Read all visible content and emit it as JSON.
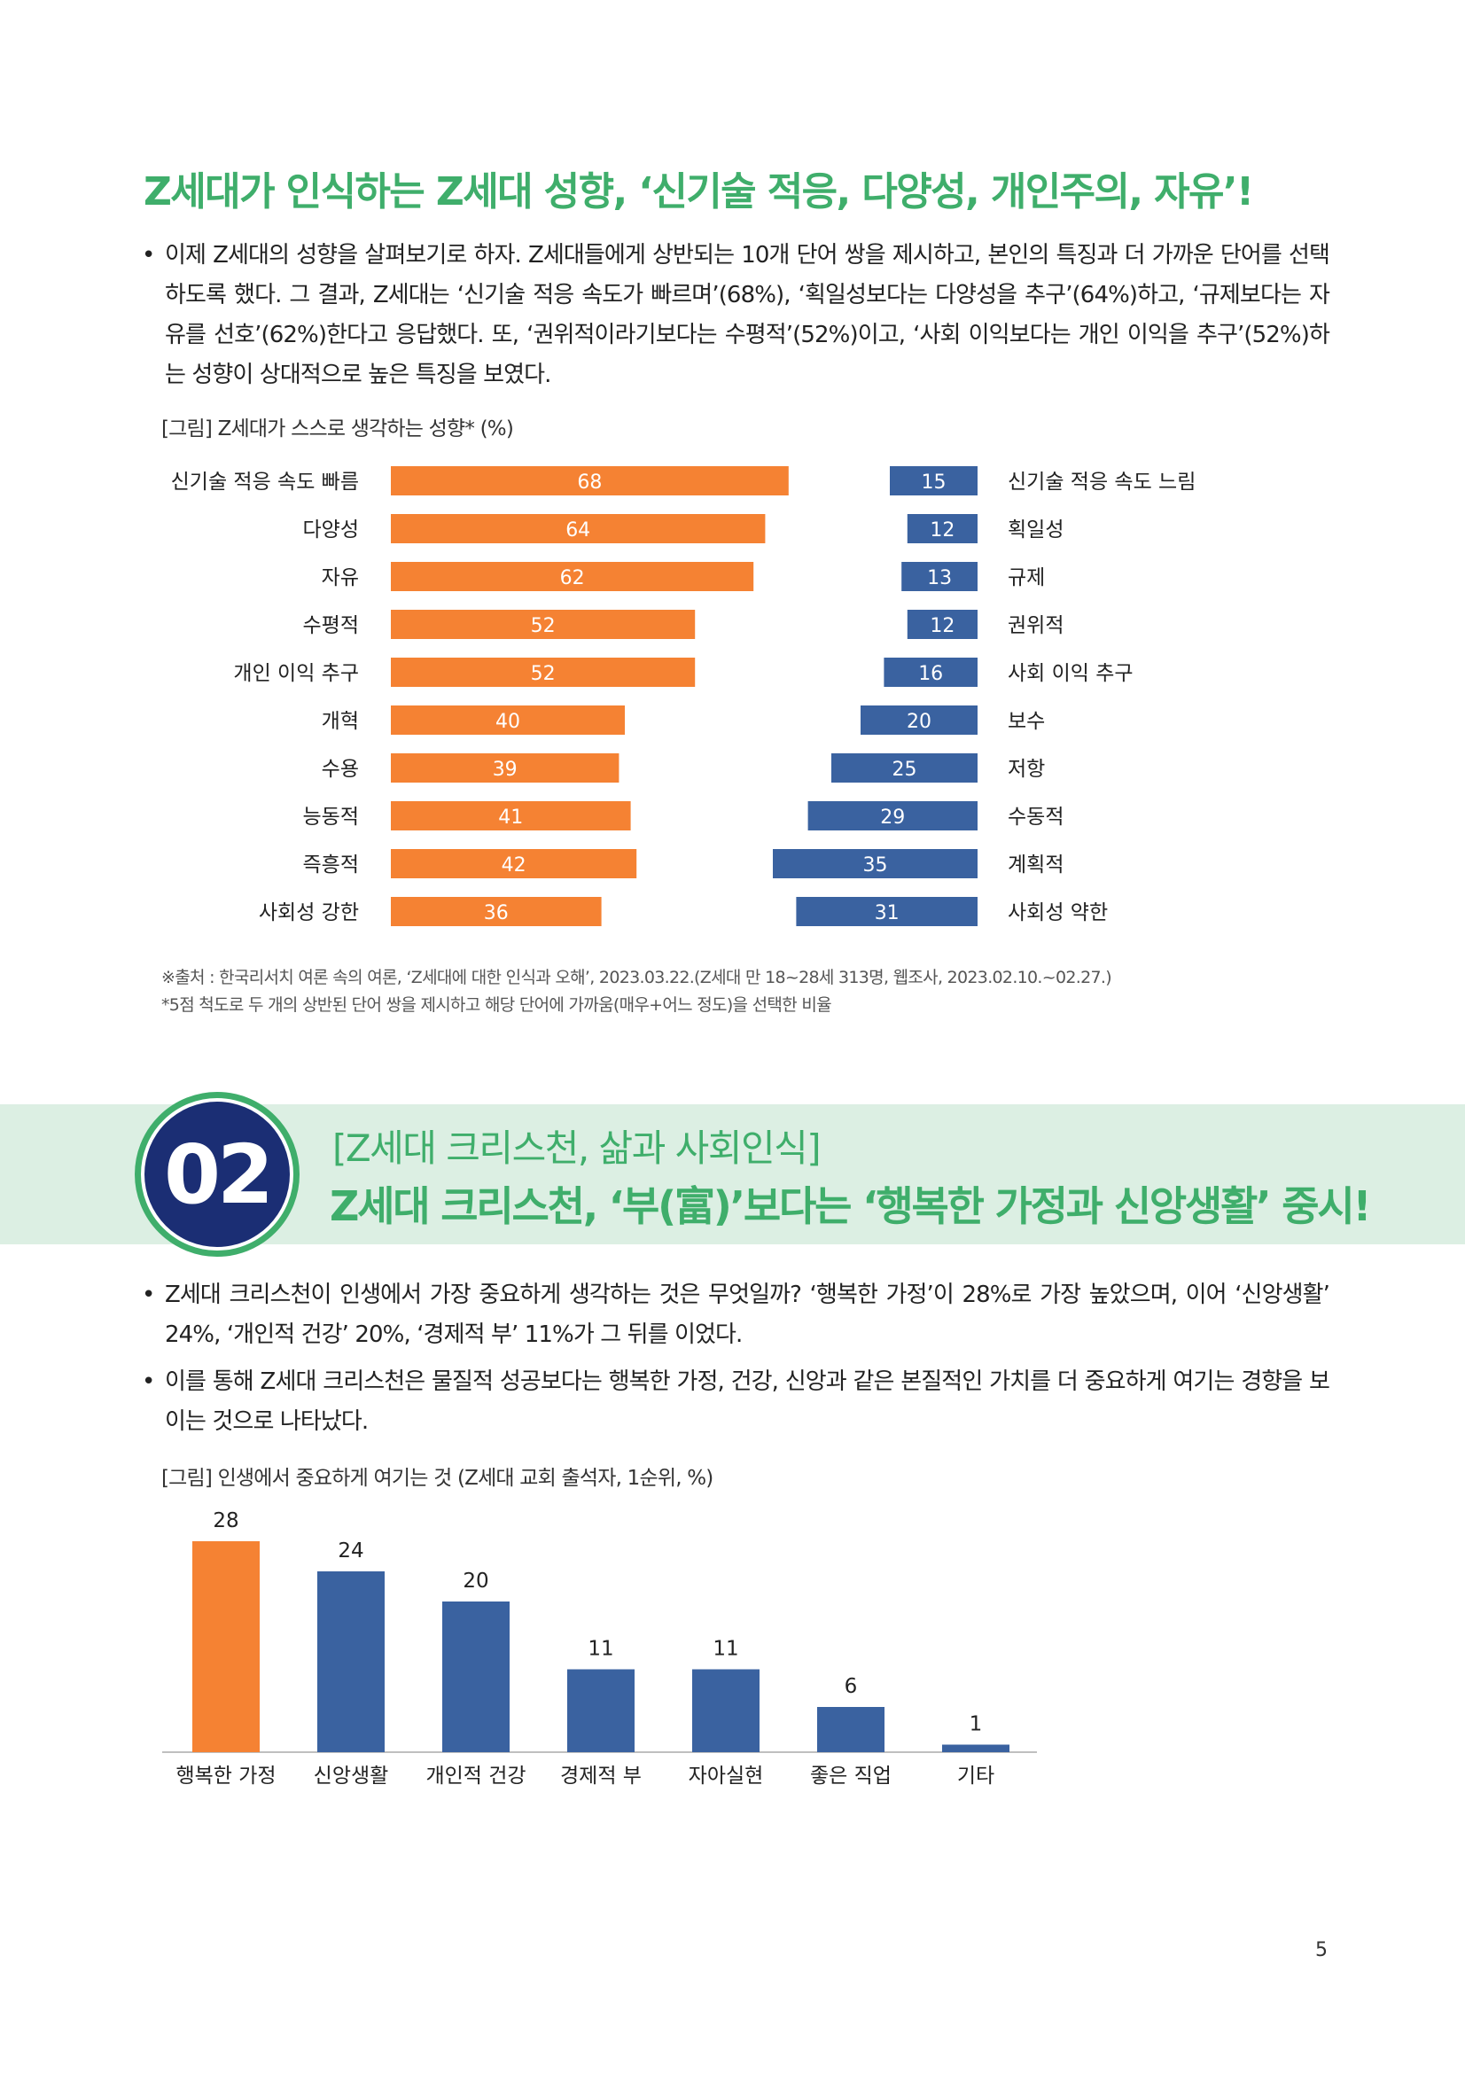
{
  "heading": "Z세대가 인식하는 Z세대 성향, ‘신기술 적응, 다양성, 개인주의, 자유’!",
  "bullets1": [
    "이제 Z세대의 성향을 살펴보기로 하자. Z세대들에게 상반되는 10개 단어 쌍을 제시하고, 본인의 특징과 더 가까운 단어를 선택하도록 했다. 그 결과, Z세대는 ‘신기술 적응 속도가 빠르며’(68%), ‘획일성보다는 다양성을 추구’(64%)하고, ‘규제보다는 자유를 선호’(62%)한다고 응답했다. 또, ‘권위적이라기보다는 수평적’(52%)이고, ‘사회 이익보다는 개인 이익을 추구’(52%)하는 성향이 상대적으로 높은 특징을 보였다."
  ],
  "figure1_title": "[그림] Z세대가 스스로 생각하는 성향* (%)",
  "notes": [
    "※출처 : 한국리서치 여론 속의 여론, ‘Z세대에 대한 인식과 오해’, 2023.03.22.(Z세대 만 18~28세 313명, 웹조사, 2023.02.10.~02.27.)",
    "*5점 척도로 두 개의 상반된 단어 쌍을 제시하고 해당 단어에 가까움(매우+어느 정도)을 선택한 비율"
  ],
  "section": {
    "number": "02",
    "subtitle": "[Z세대 크리스천, 삶과 사회인식]",
    "title": "Z세대 크리스천, ‘부(富)’보다는 ‘행복한 가정과 신앙생활’ 중시!"
  },
  "bullets2": [
    "Z세대 크리스천이 인생에서 가장 중요하게 생각하는 것은 무엇일까? ‘행복한 가정’이 28%로 가장 높았으며, 이어 ‘신앙생활’ 24%, ‘개인적 건강’ 20%, ‘경제적 부’ 11%가 그 뒤를 이었다.",
    "이를 통해 Z세대 크리스천은 물질적 성공보다는 행복한 가정, 건강, 신앙과 같은 본질적인 가치를 더 중요하게 여기는 경향을 보이는 것으로 나타났다."
  ],
  "figure2_title": "[그림] 인생에서 중요하게 여기는 것 (Z세대 교회 출석자, 1순위, %)",
  "page_number": "5",
  "colors": {
    "orange": "#f58233",
    "blue": "#3a62a0",
    "green": "#3fae6b",
    "navy": "#1b2e74",
    "band": "#dcefe3"
  },
  "chart_data": [
    {
      "type": "bar",
      "orientation": "horizontal-diverging",
      "categories_left": [
        "신기술 적응 속도 빠름",
        "다양성",
        "자유",
        "수평적",
        "개인 이익 추구",
        "개혁",
        "수용",
        "능동적",
        "즉흥적",
        "사회성 강한"
      ],
      "categories_right": [
        "신기술 적응 속도 느림",
        "획일성",
        "규제",
        "권위적",
        "사회 이익 추구",
        "보수",
        "저항",
        "수동적",
        "계획적",
        "사회성 약한"
      ],
      "series": [
        {
          "values": [
            68,
            64,
            62,
            52,
            52,
            40,
            39,
            41,
            42,
            36
          ]
        },
        {
          "values": [
            15,
            12,
            13,
            12,
            16,
            20,
            25,
            29,
            35,
            31
          ]
        }
      ],
      "xlim": [
        0,
        70
      ]
    },
    {
      "type": "bar",
      "categories": [
        "행복한 가정",
        "신앙생활",
        "개인적 건강",
        "경제적 부",
        "자아실현",
        "좋은 직업",
        "기타"
      ],
      "values": [
        28,
        24,
        20,
        11,
        11,
        6,
        1
      ],
      "ylim": [
        0,
        30
      ],
      "highlight_index": 0
    }
  ]
}
